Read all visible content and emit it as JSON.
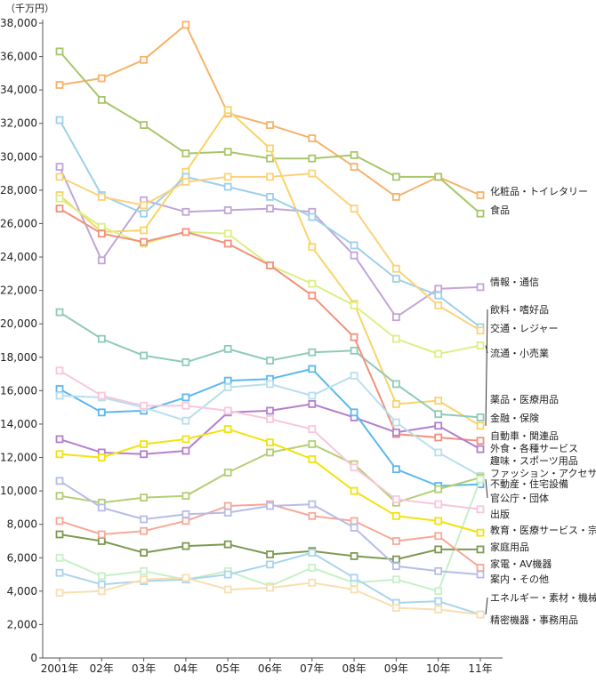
{
  "chart_data": {
    "type": "line",
    "unit": "（千万円）",
    "categories": [
      "2001年",
      "02年",
      "03年",
      "04年",
      "05年",
      "06年",
      "07年",
      "08年",
      "09年",
      "10年",
      "11年"
    ],
    "ylim": [
      0,
      38000
    ],
    "yticks": [
      0,
      2000,
      4000,
      6000,
      8000,
      10000,
      12000,
      14000,
      16000,
      18000,
      20000,
      22000,
      24000,
      26000,
      28000,
      30000,
      32000,
      34000,
      36000,
      38000
    ],
    "ytick_labels": [
      "0",
      "2,000",
      "4,000",
      "6,000",
      "8,000",
      "10,000",
      "12,000",
      "14,000",
      "16,000",
      "18,000",
      "20,000",
      "22,000",
      "24,000",
      "26,000",
      "28,000",
      "30,000",
      "32,000",
      "34,000",
      "36,000",
      "38,000"
    ],
    "grid": false,
    "series": [
      {
        "name": "化粧品・トイレタリー",
        "color": "#f7b26b",
        "values": [
          34300,
          34700,
          35800,
          37900,
          32600,
          31900,
          31100,
          29400,
          27600,
          28800,
          27700
        ]
      },
      {
        "name": "食品",
        "color": "#a8c66c",
        "values": [
          36300,
          33400,
          31900,
          30200,
          30300,
          29900,
          29900,
          30100,
          28800,
          28800,
          26600
        ]
      },
      {
        "name": "情報・通信",
        "color": "#c2a5d8",
        "values": [
          29400,
          23800,
          27400,
          26700,
          26800,
          26900,
          26700,
          24100,
          20400,
          22100,
          22200
        ]
      },
      {
        "name": "飲料・嗜好品",
        "color": "#f7d469",
        "values": [
          27700,
          25500,
          25600,
          29100,
          32800,
          30500,
          24600,
          21200,
          15200,
          15400,
          13900
        ]
      },
      {
        "name": "交通・レジャー",
        "color": "#9ed0eb",
        "values": [
          32200,
          27700,
          26600,
          28800,
          28200,
          27600,
          26400,
          24700,
          22700,
          21700,
          19800
        ]
      },
      {
        "name": "流通・小売業",
        "color": "#dcef85",
        "values": [
          27500,
          25800,
          24800,
          25500,
          25400,
          23500,
          22400,
          21100,
          19100,
          18200,
          18700
        ]
      },
      {
        "name": "薬品・医療用品",
        "color": "#8fcbb8",
        "values": [
          20700,
          19100,
          18100,
          17700,
          18500,
          17800,
          18300,
          18400,
          16400,
          14600,
          14400
        ]
      },
      {
        "name": "金融・保険",
        "color": "#fbd27a",
        "values": [
          28800,
          27600,
          27100,
          28500,
          28800,
          28800,
          29000,
          26900,
          23300,
          21100,
          19600
        ]
      },
      {
        "name": "自動車・関連品",
        "color": "#f2917d",
        "values": [
          26900,
          25400,
          24900,
          25500,
          24800,
          23500,
          21700,
          19200,
          13400,
          13200,
          13000
        ]
      },
      {
        "name": "外食・各種サービス",
        "color": "#b57fcc",
        "values": [
          13100,
          12300,
          12200,
          12400,
          14700,
          14800,
          15200,
          14400,
          13500,
          13900,
          12500
        ]
      },
      {
        "name": "趣味・スポーツ用品",
        "color": "#5cb8ee",
        "values": [
          16100,
          14700,
          14800,
          15600,
          16600,
          16700,
          17300,
          14700,
          11300,
          10300,
          10400
        ]
      },
      {
        "name": "ファッション・アクセサリー",
        "color": "#b8dfee",
        "values": [
          15700,
          15600,
          15000,
          14200,
          16200,
          16400,
          15700,
          16900,
          14100,
          12300,
          10900
        ]
      },
      {
        "name": "不動産・住宅設備",
        "color": "#b3cf72",
        "values": [
          9700,
          9300,
          9600,
          9700,
          11100,
          12300,
          12800,
          11600,
          9300,
          10100,
          10800
        ]
      },
      {
        "name": "官公庁・団体",
        "color": "#c6f0c6",
        "values": [
          6000,
          4900,
          5200,
          4700,
          5200,
          4300,
          5400,
          4500,
          4700,
          4000,
          10700
        ]
      },
      {
        "name": "出版",
        "color": "#f9c6dc",
        "values": [
          17200,
          15700,
          15100,
          15100,
          14800,
          14300,
          13700,
          11400,
          9500,
          9200,
          8900
        ]
      },
      {
        "name": "教育・医療サービス・宗教",
        "color": "#f2e211",
        "values": [
          12200,
          12000,
          12800,
          13100,
          13700,
          12900,
          11900,
          10000,
          8500,
          8200,
          7500
        ]
      },
      {
        "name": "家庭用品",
        "color": "#7e9a52",
        "values": [
          7400,
          7000,
          6300,
          6700,
          6800,
          6200,
          6400,
          6100,
          5900,
          6500,
          6500
        ]
      },
      {
        "name": "家電・AV機器",
        "color": "#f5a998",
        "values": [
          8200,
          7400,
          7600,
          8200,
          9100,
          9200,
          8500,
          8200,
          7000,
          7300,
          5400
        ]
      },
      {
        "name": "案内・その他",
        "color": "#b7bde8",
        "values": [
          10600,
          9000,
          8300,
          8600,
          8700,
          9100,
          9200,
          7800,
          5500,
          5200,
          5000
        ]
      },
      {
        "name": "エネルギー・素材・機械",
        "color": "#a9d5ed",
        "values": [
          5100,
          4400,
          4600,
          4700,
          5000,
          5600,
          6300,
          4800,
          3300,
          3400,
          2600
        ]
      },
      {
        "name": "精密機器・事務用品",
        "color": "#f8dfb0",
        "values": [
          3900,
          4000,
          4700,
          4800,
          4100,
          4200,
          4500,
          4100,
          3000,
          2900,
          2600
        ]
      }
    ]
  }
}
